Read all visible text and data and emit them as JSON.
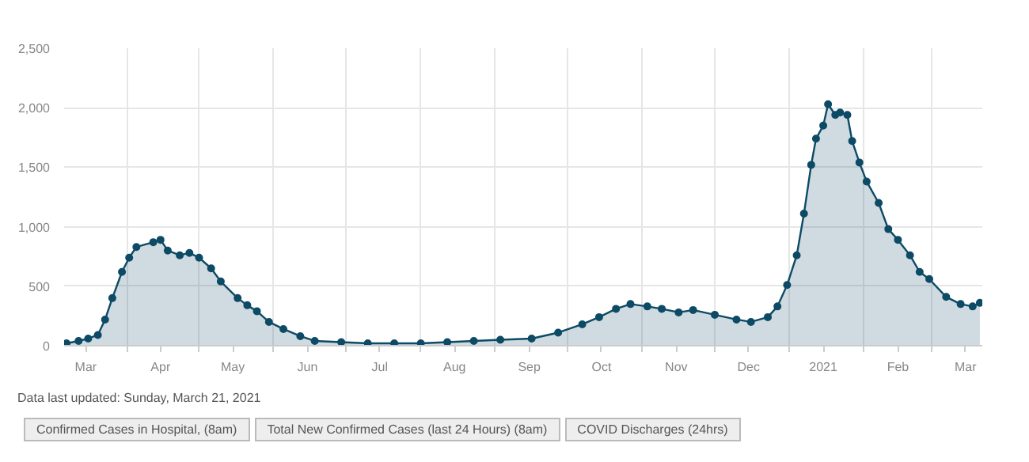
{
  "chart_data": {
    "type": "area",
    "marker": "circle",
    "line_style": "solid",
    "grid": true,
    "x": [
      "2020-03-07",
      "2020-03-12",
      "2020-03-16",
      "2020-03-20",
      "2020-03-23",
      "2020-03-26",
      "2020-03-30",
      "2020-04-02",
      "2020-04-05",
      "2020-04-12",
      "2020-04-15",
      "2020-04-18",
      "2020-04-23",
      "2020-04-27",
      "2020-05-01",
      "2020-05-06",
      "2020-05-10",
      "2020-05-17",
      "2020-05-21",
      "2020-05-25",
      "2020-05-30",
      "2020-06-05",
      "2020-06-12",
      "2020-06-18",
      "2020-06-29",
      "2020-07-10",
      "2020-07-21",
      "2020-08-01",
      "2020-08-12",
      "2020-08-23",
      "2020-09-03",
      "2020-09-16",
      "2020-09-27",
      "2020-10-07",
      "2020-10-14",
      "2020-10-21",
      "2020-10-27",
      "2020-11-03",
      "2020-11-09",
      "2020-11-16",
      "2020-11-22",
      "2020-12-01",
      "2020-12-10",
      "2020-12-16",
      "2020-12-23",
      "2020-12-27",
      "2020-12-31",
      "2021-01-04",
      "2021-01-07",
      "2021-01-10",
      "2021-01-12",
      "2021-01-15",
      "2021-01-17",
      "2021-01-20",
      "2021-01-22",
      "2021-01-25",
      "2021-01-27",
      "2021-01-30",
      "2021-02-02",
      "2021-02-07",
      "2021-02-11",
      "2021-02-15",
      "2021-02-20",
      "2021-02-24",
      "2021-02-28",
      "2021-03-07",
      "2021-03-13",
      "2021-03-18",
      "2021-03-21"
    ],
    "series": [
      {
        "color": "#0d4a66",
        "values": [
          20,
          40,
          60,
          90,
          220,
          400,
          620,
          740,
          830,
          870,
          890,
          800,
          760,
          780,
          740,
          650,
          540,
          400,
          340,
          290,
          200,
          140,
          80,
          40,
          30,
          20,
          20,
          20,
          30,
          40,
          50,
          60,
          110,
          180,
          240,
          310,
          350,
          330,
          310,
          280,
          300,
          260,
          220,
          200,
          240,
          330,
          510,
          760,
          1110,
          1520,
          1740,
          1850,
          2030,
          1940,
          1960,
          1940,
          1720,
          1540,
          1380,
          1200,
          980,
          890,
          760,
          620,
          560,
          410,
          350,
          330,
          360
        ]
      }
    ],
    "xlim": [
      "2020-03-06",
      "2021-03-22"
    ],
    "xticks": [
      {
        "value": "2020-03-15",
        "label": "Mar"
      },
      {
        "value": "2020-04-01",
        "label": null
      },
      {
        "value": "2020-04-15",
        "label": "Apr"
      },
      {
        "value": "2020-05-01",
        "label": null
      },
      {
        "value": "2020-05-15",
        "label": "May"
      },
      {
        "value": "2020-06-01",
        "label": null
      },
      {
        "value": "2020-06-15",
        "label": "Jun"
      },
      {
        "value": "2020-07-01",
        "label": null
      },
      {
        "value": "2020-07-15",
        "label": "Jul"
      },
      {
        "value": "2020-08-01",
        "label": null
      },
      {
        "value": "2020-08-15",
        "label": "Aug"
      },
      {
        "value": "2020-09-01",
        "label": null
      },
      {
        "value": "2020-09-15",
        "label": "Sep"
      },
      {
        "value": "2020-10-01",
        "label": null
      },
      {
        "value": "2020-10-15",
        "label": "Oct"
      },
      {
        "value": "2020-11-01",
        "label": null
      },
      {
        "value": "2020-11-15",
        "label": "Nov"
      },
      {
        "value": "2020-12-01",
        "label": null
      },
      {
        "value": "2020-12-15",
        "label": "Dec"
      },
      {
        "value": "2021-01-01",
        "label": null
      },
      {
        "value": "2021-01-15",
        "label": "2021"
      },
      {
        "value": "2021-02-01",
        "label": null
      },
      {
        "value": "2021-02-15",
        "label": "Feb"
      },
      {
        "value": "2021-03-01",
        "label": null
      },
      {
        "value": "2021-03-15",
        "label": "Mar"
      }
    ],
    "ylim": [
      0,
      2500
    ],
    "yticks": [
      0,
      500,
      {
        "value": 1000,
        "label": "1,000"
      },
      {
        "value": 1500,
        "label": "1,500"
      },
      {
        "value": 2000,
        "label": "2,000"
      },
      {
        "value": 2500,
        "label": "2,500"
      }
    ],
    "annotations": [
      "Data last updated: Sunday, March 21, 2021",
      "Confirmed Cases in Hospital, (8am)",
      "Total New Confirmed Cases (last 24 Hours) (8am)",
      "COVID Discharges (24hrs)"
    ]
  }
}
